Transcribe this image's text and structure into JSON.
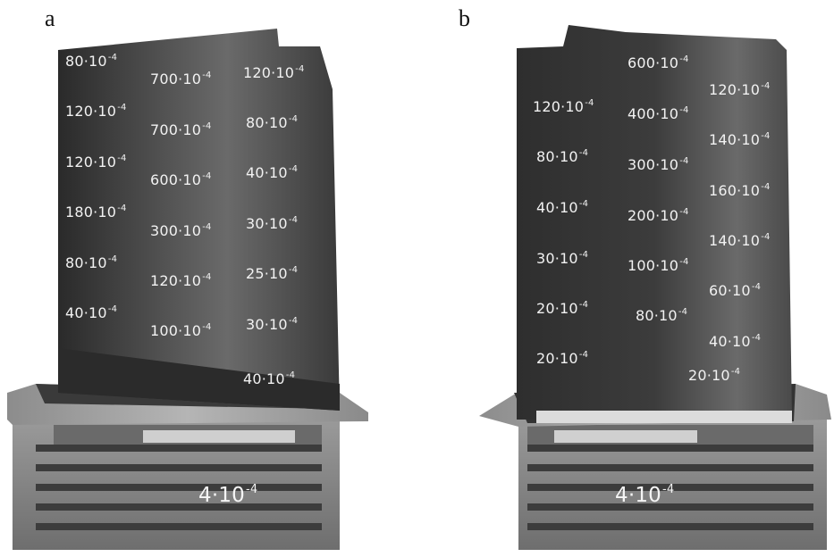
{
  "panels": [
    {
      "letter": "a",
      "root_label": {
        "base": "4·10",
        "exp": "-4"
      },
      "airfoil_labels": [
        {
          "base": "80·10",
          "exp": "-4"
        },
        {
          "base": "700·10",
          "exp": "-4"
        },
        {
          "base": "120·10",
          "exp": "-4"
        },
        {
          "base": "120·10",
          "exp": "-4"
        },
        {
          "base": "700·10",
          "exp": "-4"
        },
        {
          "base": "80·10",
          "exp": "-4"
        },
        {
          "base": "120·10",
          "exp": "-4"
        },
        {
          "base": "600·10",
          "exp": "-4"
        },
        {
          "base": "40·10",
          "exp": "-4"
        },
        {
          "base": "180·10",
          "exp": "-4"
        },
        {
          "base": "300·10",
          "exp": "-4"
        },
        {
          "base": "30·10",
          "exp": "-4"
        },
        {
          "base": "80·10",
          "exp": "-4"
        },
        {
          "base": "120·10",
          "exp": "-4"
        },
        {
          "base": "25·10",
          "exp": "-4"
        },
        {
          "base": "40·10",
          "exp": "-4"
        },
        {
          "base": "100·10",
          "exp": "-4"
        },
        {
          "base": "30·10",
          "exp": "-4"
        },
        {
          "base": "40·10",
          "exp": "-4"
        }
      ]
    },
    {
      "letter": "b",
      "root_label": {
        "base": "4·10",
        "exp": "-4"
      },
      "airfoil_labels": [
        {
          "base": "600·10",
          "exp": "-4"
        },
        {
          "base": "120·10",
          "exp": "-4"
        },
        {
          "base": "120·10",
          "exp": "-4"
        },
        {
          "base": "400·10",
          "exp": "-4"
        },
        {
          "base": "140·10",
          "exp": "-4"
        },
        {
          "base": "80·10",
          "exp": "-4"
        },
        {
          "base": "300·10",
          "exp": "-4"
        },
        {
          "base": "160·10",
          "exp": "-4"
        },
        {
          "base": "40·10",
          "exp": "-4"
        },
        {
          "base": "200·10",
          "exp": "-4"
        },
        {
          "base": "140·10",
          "exp": "-4"
        },
        {
          "base": "30·10",
          "exp": "-4"
        },
        {
          "base": "100·10",
          "exp": "-4"
        },
        {
          "base": "60·10",
          "exp": "-4"
        },
        {
          "base": "20·10",
          "exp": "-4"
        },
        {
          "base": "80·10",
          "exp": "-4"
        },
        {
          "base": "40·10",
          "exp": "-4"
        },
        {
          "base": "20·10",
          "exp": "-4"
        },
        {
          "base": "20·10",
          "exp": "-4"
        }
      ]
    }
  ]
}
